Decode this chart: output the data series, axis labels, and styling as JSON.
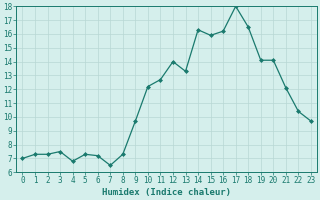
{
  "x": [
    0,
    1,
    2,
    3,
    4,
    5,
    6,
    7,
    8,
    9,
    10,
    11,
    12,
    13,
    14,
    15,
    16,
    17,
    18,
    19,
    20,
    21,
    22,
    23
  ],
  "y": [
    7.0,
    7.3,
    7.3,
    7.5,
    6.8,
    7.3,
    7.2,
    6.5,
    7.3,
    9.7,
    12.2,
    12.7,
    14.0,
    13.3,
    16.3,
    15.9,
    16.2,
    18.0,
    16.5,
    14.1,
    14.1,
    12.1,
    10.4,
    9.7
  ],
  "line_color": "#1a7a6e",
  "marker": "D",
  "markersize": 2.0,
  "linewidth": 0.9,
  "background_color": "#d5efec",
  "grid_color": "#b8d8d4",
  "xlabel": "Humidex (Indice chaleur)",
  "ylim": [
    6,
    18
  ],
  "yticks": [
    6,
    7,
    8,
    9,
    10,
    11,
    12,
    13,
    14,
    15,
    16,
    17,
    18
  ],
  "xlim": [
    -0.5,
    23.5
  ],
  "xticks": [
    0,
    1,
    2,
    3,
    4,
    5,
    6,
    7,
    8,
    9,
    10,
    11,
    12,
    13,
    14,
    15,
    16,
    17,
    18,
    19,
    20,
    21,
    22,
    23
  ],
  "xlabel_fontsize": 6.5,
  "tick_fontsize": 5.5,
  "tick_color": "#1a7a6e"
}
